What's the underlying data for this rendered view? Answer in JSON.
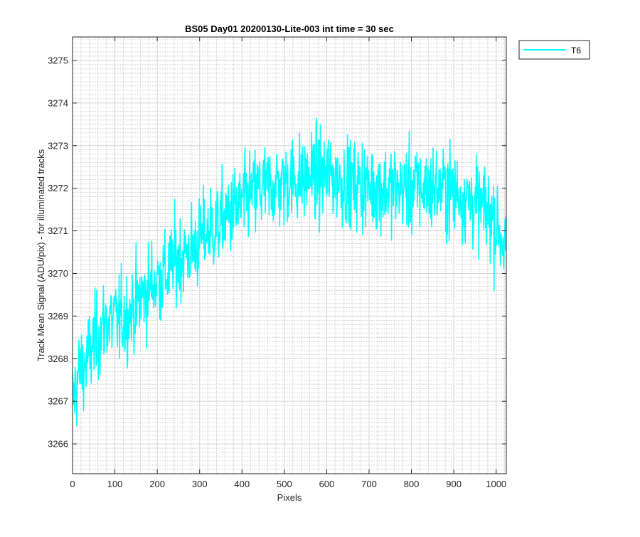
{
  "chart_data": {
    "type": "line",
    "title": "BS05 Day01 20200130-Lite-003 int time = 30 sec",
    "xlabel": "Pixels",
    "ylabel": "Track Mean Signal (ADU/pix) - for illuminated tracks",
    "xlim": [
      0,
      1024
    ],
    "ylim": [
      3265.3,
      3275.55
    ],
    "xticks": [
      0,
      100,
      200,
      300,
      400,
      500,
      600,
      700,
      800,
      900,
      1000
    ],
    "yticks": [
      3266,
      3267,
      3268,
      3269,
      3270,
      3271,
      3272,
      3273,
      3274,
      3275
    ],
    "grid": true,
    "minor_grid": true,
    "legend_position": "outside-top-right",
    "series": [
      {
        "name": "T6",
        "color": "#00FFFF",
        "x": [
          0,
          16,
          32,
          48,
          64,
          80,
          96,
          112,
          128,
          144,
          160,
          176,
          192,
          208,
          224,
          240,
          256,
          272,
          288,
          304,
          320,
          336,
          352,
          368,
          384,
          400,
          416,
          432,
          448,
          464,
          480,
          496,
          512,
          528,
          544,
          560,
          576,
          592,
          608,
          624,
          640,
          656,
          672,
          688,
          704,
          720,
          736,
          752,
          768,
          784,
          800,
          816,
          832,
          848,
          864,
          880,
          896,
          912,
          928,
          944,
          960,
          976,
          992,
          1008,
          1023
        ],
        "y": [
          3267.0,
          3267.7,
          3267.9,
          3268.3,
          3268.6,
          3268.9,
          3268.9,
          3268.9,
          3269.0,
          3269.2,
          3269.4,
          3269.6,
          3269.8,
          3269.9,
          3270.0,
          3270.3,
          3270.4,
          3270.5,
          3270.6,
          3270.8,
          3271.0,
          3271.1,
          3271.2,
          3271.4,
          3271.5,
          3271.6,
          3271.8,
          3271.9,
          3272.0,
          3272.0,
          3272.1,
          3272.1,
          3272.2,
          3272.2,
          3272.2,
          3272.3,
          3272.3,
          3272.3,
          3272.3,
          3272.2,
          3272.2,
          3272.1,
          3272.1,
          3272.1,
          3272.0,
          3272.0,
          3272.0,
          3272.0,
          3272.0,
          3272.0,
          3272.0,
          3272.0,
          3272.0,
          3272.0,
          3272.0,
          3272.0,
          3271.9,
          3271.9,
          3271.8,
          3271.7,
          3271.6,
          3271.5,
          3271.3,
          3271.0,
          3270.6
        ],
        "noise_amplitude": 0.95
      }
    ]
  }
}
